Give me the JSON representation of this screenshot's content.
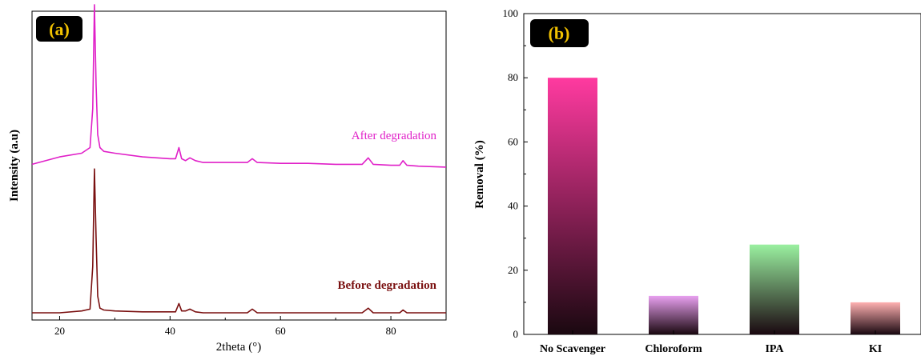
{
  "chart_data": [
    {
      "type": "line",
      "panel_label": "(a)",
      "xlabel": "2theta (°)",
      "ylabel": "Intensity (a.u)",
      "xlim": [
        15,
        90
      ],
      "xticks": [
        20,
        40,
        60,
        80
      ],
      "yticks_shown": false,
      "series": [
        {
          "name": "After degradation",
          "color": "#e020c8",
          "offset": 1.0,
          "x": [
            15,
            20,
            24,
            25.5,
            26,
            26.3,
            26.6,
            26.9,
            27.3,
            28,
            30,
            35,
            40,
            41,
            41.6,
            42.1,
            42.8,
            43.6,
            44.6,
            46,
            50,
            54,
            54.9,
            55.8,
            60,
            65,
            70,
            74.8,
            75.9,
            76.8,
            80,
            81.6,
            82.2,
            82.9,
            85,
            90
          ],
          "y": [
            0.0,
            0.08,
            0.12,
            0.18,
            0.6,
            1.72,
            0.85,
            0.32,
            0.18,
            0.14,
            0.12,
            0.08,
            0.06,
            0.06,
            0.18,
            0.06,
            0.04,
            0.07,
            0.04,
            0.02,
            0.02,
            0.02,
            0.06,
            0.02,
            0.01,
            0.01,
            0.0,
            0.0,
            0.07,
            0.0,
            -0.01,
            -0.01,
            0.04,
            -0.01,
            -0.02,
            -0.03
          ]
        },
        {
          "name": "Before degradation",
          "color": "#7a1010",
          "offset": 0.0,
          "x": [
            15,
            20,
            24,
            25.5,
            26,
            26.3,
            26.6,
            26.9,
            27.3,
            28,
            30,
            35,
            40,
            41,
            41.6,
            42.1,
            42.8,
            43.6,
            44.6,
            46,
            50,
            54,
            54.9,
            55.8,
            60,
            65,
            70,
            74.8,
            75.9,
            76.8,
            80,
            81.6,
            82.2,
            82.9,
            85,
            90
          ],
          "y": [
            0.0,
            0.0,
            0.02,
            0.04,
            0.5,
            1.55,
            0.8,
            0.18,
            0.05,
            0.03,
            0.02,
            0.01,
            0.01,
            0.01,
            0.1,
            0.02,
            0.02,
            0.04,
            0.01,
            0.0,
            0.0,
            0.0,
            0.04,
            0.0,
            0.0,
            0.0,
            0.0,
            0.0,
            0.05,
            0.0,
            0.0,
            0.0,
            0.03,
            0.0,
            0.0,
            0.0
          ]
        }
      ]
    },
    {
      "type": "bar",
      "panel_label": "(b)",
      "ylabel": "Removal (%)",
      "xlabel": "",
      "ylim": [
        0,
        100
      ],
      "yticks": [
        0,
        20,
        40,
        60,
        80,
        100
      ],
      "categories": [
        "No Scavenger",
        "Chloroform",
        "IPA",
        "KI"
      ],
      "values": [
        80,
        12,
        28,
        10
      ],
      "colors_top": [
        "#ff3aa0",
        "#e8a0f0",
        "#9af0a0",
        "#ffb0b0"
      ],
      "color_bottom": "#1a0810"
    }
  ]
}
